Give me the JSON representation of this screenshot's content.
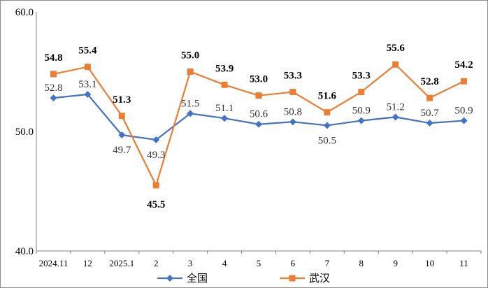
{
  "chart_data": {
    "type": "line",
    "title": "",
    "xlabel": "",
    "ylabel": "",
    "ylim": [
      40,
      60
    ],
    "yticks": [
      "40.0",
      "50.0",
      "60.0"
    ],
    "grid": false,
    "legend_position": "bottom",
    "categories": [
      "2024.11",
      "12",
      "2025.1",
      "2",
      "3",
      "4",
      "5",
      "6",
      "7",
      "8",
      "9",
      "10",
      "11"
    ],
    "series": [
      {
        "name": "全国",
        "color": "#4472C4",
        "marker": "diamond",
        "values": [
          52.8,
          53.1,
          49.7,
          49.3,
          51.5,
          51.1,
          50.6,
          50.8,
          50.5,
          50.9,
          51.2,
          50.7,
          50.9
        ],
        "labels": [
          "52.8",
          "53.1",
          "49.7",
          "49.3",
          "51.5",
          "51.1",
          "50.6",
          "50.8",
          "50.5",
          "50.9",
          "51.2",
          "50.7",
          "50.9"
        ]
      },
      {
        "name": "武汉",
        "color": "#ED7D31",
        "marker": "square",
        "values": [
          54.8,
          55.4,
          51.3,
          45.5,
          55.0,
          53.9,
          53.0,
          53.3,
          51.6,
          53.3,
          55.6,
          52.8,
          54.2
        ],
        "labels": [
          "54.8",
          "55.4",
          "51.3",
          "45.5",
          "55.0",
          "53.9",
          "53.0",
          "53.3",
          "51.6",
          "53.3",
          "55.6",
          "52.8",
          "54.2"
        ]
      }
    ]
  }
}
